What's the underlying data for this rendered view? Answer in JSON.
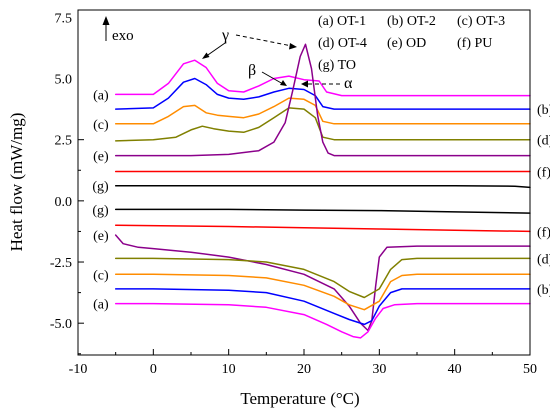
{
  "chart_data": {
    "type": "line",
    "ylabel": "Heat flow (mW/mg)",
    "xlabel": "Temperature (°C)",
    "xlim": [
      -10,
      50
    ],
    "ylim": [
      -6.3,
      7.8
    ],
    "x_ticks": [
      -10,
      0,
      10,
      20,
      30,
      40,
      50
    ],
    "x_tick_labels": [
      "-10",
      "0",
      "10",
      "20",
      "30",
      "40",
      "50"
    ],
    "y_ticks": [
      7.5,
      5.0,
      2.5,
      0.0,
      -2.5,
      -5.0
    ],
    "y_tick_labels": [
      "7.5",
      "5.0",
      "2.5",
      "0.0",
      "-2.5",
      "-5.0"
    ],
    "grid": false,
    "legend_position": "top-right",
    "legend": [
      {
        "label": "(a) OT-1",
        "color": "#ff00ff"
      },
      {
        "label": "(b) OT-2",
        "color": "#0000ff"
      },
      {
        "label": "(c) OT-3",
        "color": "#ff8c00"
      },
      {
        "label": "(d) OT-4",
        "color": "#808000"
      },
      {
        "label": "(e) OD",
        "color": "#8b008b"
      },
      {
        "label": "(f) PU",
        "color": "#ff0000"
      },
      {
        "label": "(g) TO",
        "color": "#000000"
      }
    ],
    "annotations": [
      {
        "text": "exo"
      },
      {
        "text": "γ"
      },
      {
        "text": "β"
      },
      {
        "text": "α"
      }
    ],
    "series": [
      {
        "curve": "a",
        "phase": "heating",
        "color": "#ff00ff",
        "x": [
          -5,
          0,
          2,
          4,
          5.5,
          7,
          8.5,
          10,
          12,
          14,
          16,
          18,
          20,
          22,
          23,
          25,
          30,
          40,
          50
        ],
        "y": [
          4.35,
          4.35,
          4.8,
          5.6,
          5.75,
          5.45,
          4.8,
          4.5,
          4.45,
          4.7,
          5.0,
          5.1,
          4.95,
          4.9,
          4.45,
          4.3,
          4.3,
          4.3,
          4.3
        ]
      },
      {
        "curve": "b",
        "phase": "heating",
        "color": "#0000ff",
        "x": [
          -5,
          0,
          2,
          4,
          5.5,
          7,
          8.5,
          10,
          12,
          14,
          16,
          18,
          20,
          21.5,
          22.5,
          24,
          30,
          40,
          50
        ],
        "y": [
          3.75,
          3.8,
          4.2,
          4.85,
          5.0,
          4.75,
          4.35,
          4.2,
          4.15,
          4.25,
          4.45,
          4.6,
          4.55,
          4.3,
          3.85,
          3.75,
          3.75,
          3.75,
          3.75
        ]
      },
      {
        "curve": "c",
        "phase": "heating",
        "color": "#ff8c00",
        "x": [
          -5,
          0,
          2,
          4,
          5.5,
          7,
          8.5,
          10,
          12,
          14,
          16,
          18,
          20,
          21.5,
          22.5,
          24,
          30,
          40,
          50
        ],
        "y": [
          3.15,
          3.15,
          3.45,
          3.85,
          3.9,
          3.6,
          3.5,
          3.45,
          3.4,
          3.55,
          3.85,
          4.2,
          4.15,
          3.9,
          3.25,
          3.15,
          3.15,
          3.15,
          3.15
        ]
      },
      {
        "curve": "d",
        "phase": "heating",
        "color": "#808000",
        "x": [
          -5,
          0,
          3,
          5,
          6.5,
          8,
          10,
          12,
          14,
          16,
          18,
          20,
          21.5,
          22.5,
          24,
          30,
          40,
          50
        ],
        "y": [
          2.45,
          2.5,
          2.6,
          2.9,
          3.05,
          2.95,
          2.85,
          2.8,
          3.0,
          3.4,
          3.8,
          3.75,
          3.4,
          2.6,
          2.5,
          2.5,
          2.5,
          2.5
        ]
      },
      {
        "curve": "e",
        "phase": "heating",
        "color": "#8b008b",
        "x": [
          -5,
          5,
          10,
          14,
          16,
          17.5,
          18.5,
          19.5,
          20.2,
          21,
          21.8,
          22.5,
          23.2,
          24,
          30,
          40,
          50
        ],
        "y": [
          1.85,
          1.85,
          1.9,
          2.05,
          2.4,
          3.2,
          4.5,
          5.9,
          6.4,
          5.4,
          3.5,
          2.4,
          1.95,
          1.85,
          1.85,
          1.85,
          1.85
        ]
      },
      {
        "curve": "f",
        "phase": "heating",
        "color": "#ff0000",
        "x": [
          -5,
          10,
          20,
          30,
          40,
          50
        ],
        "y": [
          1.2,
          1.2,
          1.2,
          1.2,
          1.2,
          1.2
        ]
      },
      {
        "curve": "g",
        "phase": "heating",
        "color": "#000000",
        "x": [
          -5,
          10,
          20,
          30,
          40,
          48,
          50
        ],
        "y": [
          0.62,
          0.62,
          0.62,
          0.62,
          0.62,
          0.6,
          0.55
        ]
      },
      {
        "curve": "g",
        "phase": "cooling",
        "color": "#000000",
        "x": [
          -5,
          10,
          20,
          30,
          40,
          50
        ],
        "y": [
          -0.35,
          -0.35,
          -0.38,
          -0.4,
          -0.45,
          -0.5
        ]
      },
      {
        "curve": "f",
        "phase": "cooling",
        "color": "#ff0000",
        "x": [
          -5,
          10,
          20,
          30,
          40,
          50
        ],
        "y": [
          -1.0,
          -1.05,
          -1.1,
          -1.15,
          -1.2,
          -1.25
        ]
      },
      {
        "curve": "e",
        "phase": "cooling",
        "color": "#8b008b",
        "x": [
          -5,
          -4,
          -2,
          0,
          5,
          10,
          15,
          20,
          24,
          26,
          27.5,
          28.5,
          29,
          29.5,
          30,
          31,
          35,
          40,
          50
        ],
        "y": [
          -1.4,
          -1.75,
          -1.9,
          -1.95,
          -2.1,
          -2.3,
          -2.6,
          -3.0,
          -3.6,
          -4.3,
          -5.0,
          -5.3,
          -4.9,
          -3.5,
          -2.3,
          -1.9,
          -1.85,
          -1.85,
          -1.85
        ]
      },
      {
        "curve": "d",
        "phase": "cooling",
        "color": "#808000",
        "x": [
          -5,
          0,
          10,
          15,
          20,
          24,
          26,
          28,
          30,
          31.5,
          33,
          35,
          40,
          50
        ],
        "y": [
          -2.35,
          -2.35,
          -2.4,
          -2.5,
          -2.8,
          -3.3,
          -3.7,
          -3.95,
          -3.6,
          -2.8,
          -2.4,
          -2.35,
          -2.35,
          -2.35
        ]
      },
      {
        "curve": "c",
        "phase": "cooling",
        "color": "#ff8c00",
        "x": [
          -5,
          0,
          10,
          15,
          20,
          24,
          26,
          28,
          30,
          31.5,
          33,
          35,
          40,
          50
        ],
        "y": [
          -3.0,
          -3.0,
          -3.05,
          -3.15,
          -3.45,
          -3.9,
          -4.25,
          -4.45,
          -4.1,
          -3.3,
          -3.05,
          -3.0,
          -3.0,
          -3.0
        ]
      },
      {
        "curve": "b",
        "phase": "cooling",
        "color": "#0000ff",
        "x": [
          -5,
          0,
          10,
          15,
          20,
          24,
          26,
          28,
          29,
          30,
          31.5,
          33,
          35,
          40,
          50
        ],
        "y": [
          -3.6,
          -3.6,
          -3.65,
          -3.75,
          -4.1,
          -4.6,
          -4.85,
          -5.05,
          -4.9,
          -4.3,
          -3.75,
          -3.6,
          -3.6,
          -3.6,
          -3.6
        ]
      },
      {
        "curve": "a",
        "phase": "cooling",
        "color": "#ff00ff",
        "x": [
          -5,
          0,
          10,
          15,
          20,
          23,
          25,
          26.5,
          27.5,
          28.5,
          29.5,
          30.5,
          32,
          35,
          40,
          50
        ],
        "y": [
          -4.2,
          -4.2,
          -4.25,
          -4.35,
          -4.65,
          -5.05,
          -5.35,
          -5.55,
          -5.6,
          -5.35,
          -4.8,
          -4.4,
          -4.25,
          -4.2,
          -4.2,
          -4.2
        ]
      }
    ],
    "curve_labels": [
      {
        "text": "(a)",
        "side": "left",
        "x": -5,
        "y": 4.35
      },
      {
        "text": "(c)",
        "side": "left",
        "x": -5,
        "y": 3.15
      },
      {
        "text": "(e)",
        "side": "left",
        "x": -5,
        "y": 1.85
      },
      {
        "text": "(g)",
        "side": "left",
        "x": -5,
        "y": 0.62
      },
      {
        "text": "(g)",
        "side": "left",
        "x": -5,
        "y": -0.35
      },
      {
        "text": "(e)",
        "side": "left",
        "x": -5,
        "y": -1.4
      },
      {
        "text": "(c)",
        "side": "left",
        "x": -5,
        "y": -3.0
      },
      {
        "text": "(a)",
        "side": "left",
        "x": -5,
        "y": -4.2
      },
      {
        "text": "(b)",
        "side": "right",
        "x": 50,
        "y": 3.75
      },
      {
        "text": "(d)",
        "side": "right",
        "x": 50,
        "y": 2.5
      },
      {
        "text": "(f)",
        "side": "right",
        "x": 50,
        "y": 1.2
      },
      {
        "text": "(f)",
        "side": "right",
        "x": 50,
        "y": -1.25
      },
      {
        "text": "(d)",
        "side": "right",
        "x": 50,
        "y": -2.35
      },
      {
        "text": "(b)",
        "side": "right",
        "x": 50,
        "y": -3.6
      }
    ]
  }
}
